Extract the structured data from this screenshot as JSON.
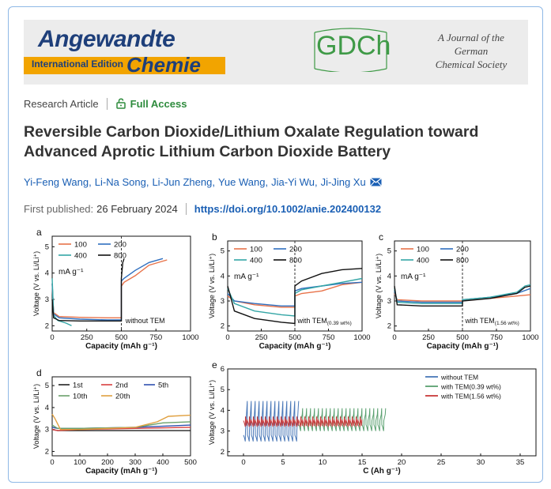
{
  "header": {
    "journal_title": "Angewandte",
    "journal_subtitle": "Chemie",
    "edition": "International Edition",
    "society_logo": "GDCh",
    "society_lines": [
      "A Journal of the",
      "German",
      "Chemical Society"
    ]
  },
  "article": {
    "type": "Research Article",
    "access": "Full Access",
    "title": "Reversible Carbon Dioxide/Lithium Oxalate Regulation toward Advanced Aprotic Lithium Carbon Dioxide Battery",
    "authors": [
      "Yi-Feng Wang",
      "Li-Na Song",
      "Li-Jun Zheng",
      "Yue Wang",
      "Jia-Yi Wu",
      "Ji-Jing Xu"
    ],
    "published_label": "First published:",
    "published_date": "26 February 2024",
    "doi": "https://doi.org/10.1002/anie.202400132"
  },
  "colors": {
    "link": "#1a5fb4",
    "access": "#2e8b3d",
    "brand_blue": "#1e3f7a",
    "brand_orange": "#f2a400",
    "gdch_green": "#3f9a47"
  },
  "figure": {
    "panels": {
      "a": {
        "letter": "a",
        "annotation": "without TEM"
      },
      "b": {
        "letter": "b",
        "annotation": "with TEM",
        "annotation_sub": "(0.39 wt%)"
      },
      "c": {
        "letter": "c",
        "annotation": "with TEM",
        "annotation_sub": "(1.56 wt%)"
      },
      "d": {
        "letter": "d"
      },
      "e": {
        "letter": "e"
      }
    },
    "unit_label": "mA g⁻¹",
    "abc_ylabel": "Voltage (V vs. Li/Li⁺)",
    "abc_xlabel": "Capacity (mAh g⁻¹)",
    "rate_legend": [
      "100",
      "200",
      "400",
      "800"
    ],
    "rate_colors": [
      "#e8734a",
      "#2f6fbf",
      "#34a6a6",
      "#111111"
    ],
    "d_legend": [
      "1st",
      "2nd",
      "5th",
      "10th",
      "20th"
    ],
    "d_colors": [
      "#222222",
      "#d94040",
      "#3050b0",
      "#6aa06a",
      "#e0a040"
    ],
    "e_legend": [
      "without TEM",
      "with TEM(0.39 wt%)",
      "with TEM(1.56 wt%)"
    ],
    "e_colors": [
      "#4a78b8",
      "#5aa070",
      "#c83a3a"
    ],
    "e_xlabel": "C (Ah g⁻¹)"
  },
  "chart_data": [
    {
      "type": "line",
      "panel": "a",
      "xlabel": "Capacity (mAh g⁻¹)",
      "ylabel": "Voltage (V vs. Li/Li⁺)",
      "xlim": [
        0,
        1000
      ],
      "ylim": [
        1.8,
        5.4
      ],
      "xticks": [
        0,
        250,
        500,
        750,
        1000
      ],
      "yticks": [
        2,
        3,
        4,
        5
      ],
      "series": [
        {
          "name": "100",
          "x": [
            0,
            10,
            50,
            200,
            400,
            500,
            500,
            520,
            600,
            700,
            830
          ],
          "y": [
            3.6,
            2.5,
            2.35,
            2.32,
            2.3,
            2.3,
            3.5,
            3.65,
            3.9,
            4.3,
            4.5
          ]
        },
        {
          "name": "200",
          "x": [
            0,
            10,
            50,
            200,
            400,
            500,
            500,
            520,
            600,
            700,
            800
          ],
          "y": [
            3.6,
            2.45,
            2.3,
            2.25,
            2.22,
            2.22,
            3.7,
            3.8,
            4.1,
            4.4,
            4.55
          ]
        },
        {
          "name": "400",
          "x": [
            0,
            10,
            40,
            100,
            140
          ],
          "y": [
            3.8,
            2.4,
            2.2,
            2.1,
            2.0
          ]
        },
        {
          "name": "800",
          "x": [
            0,
            10,
            50,
            200,
            400,
            500,
            500,
            510,
            520
          ],
          "y": [
            3.0,
            2.3,
            2.2,
            2.18,
            2.18,
            2.18,
            3.8,
            4.4,
            4.55
          ]
        }
      ]
    },
    {
      "type": "line",
      "panel": "b",
      "xlabel": "Capacity (mAh g⁻¹)",
      "ylabel": "Voltage (V vs. Li/Li⁺)",
      "xlim": [
        0,
        1000
      ],
      "ylim": [
        1.8,
        5.4
      ],
      "xticks": [
        0,
        250,
        500,
        750,
        1000
      ],
      "yticks": [
        2,
        3,
        4,
        5
      ],
      "series": [
        {
          "name": "100",
          "x": [
            0,
            50,
            200,
            400,
            500,
            500,
            550,
            700,
            850,
            1000
          ],
          "y": [
            3.2,
            3.0,
            2.85,
            2.75,
            2.75,
            3.2,
            3.3,
            3.4,
            3.65,
            3.75
          ]
        },
        {
          "name": "200",
          "x": [
            0,
            50,
            200,
            400,
            500,
            500,
            550,
            700,
            850,
            1000
          ],
          "y": [
            3.3,
            3.0,
            2.9,
            2.8,
            2.8,
            3.4,
            3.5,
            3.6,
            3.7,
            3.75
          ]
        },
        {
          "name": "400",
          "x": [
            0,
            50,
            200,
            400,
            500,
            500,
            550,
            700,
            850,
            1000
          ],
          "y": [
            3.5,
            2.9,
            2.6,
            2.45,
            2.4,
            3.3,
            3.45,
            3.6,
            3.75,
            3.9
          ]
        },
        {
          "name": "800",
          "x": [
            0,
            50,
            200,
            400,
            500,
            500,
            550,
            700,
            850,
            1000
          ],
          "y": [
            3.6,
            2.6,
            2.3,
            2.15,
            2.1,
            3.6,
            3.8,
            4.1,
            4.25,
            4.3
          ]
        }
      ]
    },
    {
      "type": "line",
      "panel": "c",
      "xlabel": "Capacity (mAh g⁻¹)",
      "ylabel": "Voltage (V vs. Li/Li⁺)",
      "xlim": [
        0,
        1000
      ],
      "ylim": [
        1.8,
        5.4
      ],
      "xticks": [
        0,
        250,
        500,
        750,
        1000
      ],
      "yticks": [
        2,
        3,
        4,
        5
      ],
      "series": [
        {
          "name": "100",
          "x": [
            0,
            20,
            200,
            500,
            500,
            700,
            900,
            1000
          ],
          "y": [
            3.3,
            3.05,
            3.0,
            3.0,
            3.05,
            3.1,
            3.2,
            3.25
          ]
        },
        {
          "name": "200",
          "x": [
            0,
            20,
            200,
            500,
            500,
            700,
            900,
            1000
          ],
          "y": [
            3.4,
            3.0,
            2.95,
            2.95,
            3.05,
            3.15,
            3.3,
            3.5
          ]
        },
        {
          "name": "400",
          "x": [
            0,
            20,
            200,
            500,
            500,
            700,
            900,
            960,
            1000
          ],
          "y": [
            3.5,
            2.95,
            2.9,
            2.9,
            3.05,
            3.15,
            3.35,
            3.6,
            3.65
          ]
        },
        {
          "name": "800",
          "x": [
            0,
            20,
            200,
            500,
            500,
            700,
            900,
            960,
            1000
          ],
          "y": [
            3.6,
            2.85,
            2.8,
            2.8,
            3.0,
            3.1,
            3.3,
            3.55,
            3.6
          ]
        }
      ]
    },
    {
      "type": "line",
      "panel": "d",
      "xlabel": "Capacity (mAh g⁻¹)",
      "ylabel": "Voltage (V vs. Li/Li⁺)",
      "xlim": [
        0,
        500
      ],
      "ylim": [
        1.8,
        5.4
      ],
      "xticks": [
        0,
        100,
        200,
        300,
        400,
        500
      ],
      "yticks": [
        2,
        3,
        4,
        5
      ],
      "series": [
        {
          "name": "1st",
          "x": [
            0,
            20,
            100,
            300,
            500
          ],
          "y": [
            3.0,
            2.95,
            2.95,
            2.95,
            2.95
          ]
        },
        {
          "name": "2nd",
          "x": [
            0,
            20,
            100,
            300,
            500
          ],
          "y": [
            3.0,
            2.95,
            3.0,
            3.05,
            3.1
          ]
        },
        {
          "name": "5th",
          "x": [
            0,
            20,
            100,
            300,
            500
          ],
          "y": [
            3.1,
            3.05,
            3.05,
            3.1,
            3.2
          ]
        },
        {
          "name": "10th",
          "x": [
            0,
            20,
            100,
            300,
            400,
            500
          ],
          "y": [
            3.2,
            3.05,
            3.05,
            3.1,
            3.3,
            3.35
          ]
        },
        {
          "name": "20th",
          "x": [
            0,
            10,
            30,
            100,
            300,
            380,
            420,
            500
          ],
          "y": [
            3.7,
            3.5,
            3.0,
            3.0,
            3.1,
            3.35,
            3.6,
            3.65
          ]
        }
      ]
    },
    {
      "type": "line",
      "panel": "e",
      "xlabel": "C (Ah g⁻¹)",
      "ylabel": "Voltage (V vs. Li/Li⁺)",
      "xlim": [
        -2,
        37
      ],
      "ylim": [
        1.8,
        6.0
      ],
      "xticks": [
        0,
        5,
        10,
        15,
        20,
        25,
        30,
        35
      ],
      "yticks": [
        2,
        3,
        4,
        5,
        6
      ],
      "series": [
        {
          "name": "without TEM",
          "cycles": 14,
          "cycle_length": 0.5,
          "x_start": 0,
          "low": 2.2,
          "high": 4.45
        },
        {
          "name": "with TEM(0.39 wt%)",
          "cycles": 22,
          "cycle_length": 0.5,
          "x_start": 7,
          "low": 2.7,
          "high": 4.1
        },
        {
          "name": "with TEM(1.56 wt%)",
          "cycles": 30,
          "cycle_length": 0.5,
          "x_start": 0,
          "low": 2.9,
          "high": 3.55
        }
      ]
    }
  ]
}
